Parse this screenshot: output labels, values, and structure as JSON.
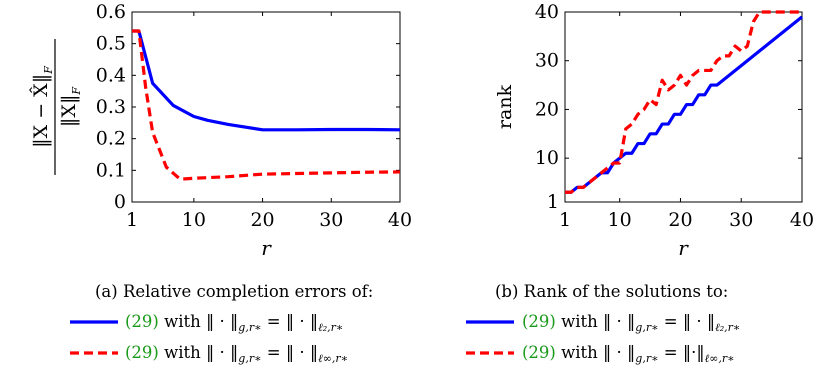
{
  "chart_data": [
    {
      "type": "line",
      "ylabel_num": "‖X − X̂‖",
      "ylabel_num_sub": "F",
      "ylabel_den": "‖X‖",
      "ylabel_den_sub": "F",
      "xlabel": "r",
      "xlim": [
        1,
        40
      ],
      "ylim": [
        0,
        0.6
      ],
      "xticks": [
        1,
        10,
        20,
        30,
        40
      ],
      "yticks": [
        "0",
        "0.1",
        "0.2",
        "0.3",
        "0.4",
        "0.5",
        "0.6"
      ],
      "grid": false,
      "series": [
        {
          "color": "#0000ff",
          "style": "solid",
          "x": [
            1,
            2,
            4,
            7,
            10,
            12,
            15,
            20,
            25,
            30,
            35,
            40
          ],
          "y": [
            0.54,
            0.54,
            0.375,
            0.305,
            0.27,
            0.258,
            0.245,
            0.228,
            0.228,
            0.229,
            0.229,
            0.228
          ]
        },
        {
          "color": "#ff0000",
          "style": "dashed",
          "x": [
            1,
            2,
            3,
            4,
            6,
            8,
            10,
            15,
            20,
            25,
            30,
            35,
            40
          ],
          "y": [
            0.54,
            0.54,
            0.36,
            0.22,
            0.11,
            0.072,
            0.075,
            0.08,
            0.088,
            0.09,
            0.092,
            0.094,
            0.095
          ]
        }
      ],
      "caption": {
        "title": "(a) Relative completion errors of:",
        "lines": [
          {
            "ref": "(29)",
            "text": " with ",
            "lhs": "‖ · ‖",
            "lhs_sub": "g,r∗",
            "eq": " = ",
            "rhs": "‖ · ‖",
            "rhs_sub": "ℓ₂,r∗"
          },
          {
            "ref": "(29)",
            "text": " with ",
            "lhs": "‖ · ‖",
            "lhs_sub": "g,r∗",
            "eq": " = ",
            "rhs": "‖ · ‖",
            "rhs_sub": "ℓ∞,r∗"
          }
        ]
      }
    },
    {
      "type": "line",
      "ylabel": "rank",
      "xlabel": "r",
      "xlim": [
        1,
        40
      ],
      "ylim": [
        1,
        40
      ],
      "xticks": [
        1,
        10,
        20,
        30,
        40
      ],
      "yticks": [
        "1",
        "10",
        "20",
        "30",
        "40"
      ],
      "grid": false,
      "series": [
        {
          "color": "#0000ff",
          "style": "solid",
          "x": [
            1,
            2,
            3,
            4,
            5,
            6,
            7,
            8,
            9,
            10,
            11,
            12,
            13,
            14,
            15,
            16,
            17,
            18,
            19,
            20,
            21,
            22,
            23,
            24,
            25,
            26,
            27,
            28,
            29,
            30,
            31,
            32,
            33,
            34,
            35,
            36,
            37,
            38,
            39,
            40
          ],
          "y": [
            3,
            3,
            4,
            4,
            5,
            6,
            7,
            7,
            9,
            10,
            11,
            11,
            13,
            13,
            15,
            15,
            17,
            17,
            19,
            19,
            21,
            21,
            23,
            23,
            25,
            25,
            26,
            27,
            28,
            29,
            30,
            31,
            32,
            33,
            34,
            35,
            36,
            37,
            38,
            39
          ]
        },
        {
          "color": "#ff0000",
          "style": "dashed",
          "x": [
            1,
            2,
            3,
            4,
            5,
            6,
            7,
            8,
            9,
            10,
            11,
            12,
            13,
            14,
            15,
            16,
            17,
            18,
            19,
            20,
            21,
            22,
            23,
            24,
            25,
            26,
            27,
            28,
            29,
            30,
            31,
            32,
            33,
            34,
            35,
            36,
            37,
            38,
            39,
            40
          ],
          "y": [
            3,
            3,
            4,
            4,
            5,
            6,
            7,
            8,
            9,
            9,
            16,
            17,
            19,
            20,
            22,
            21,
            26,
            24,
            25,
            27,
            25,
            27,
            28,
            28,
            28,
            30,
            31,
            31,
            33,
            32,
            33,
            38,
            40,
            40,
            40,
            40,
            40,
            40,
            40,
            40
          ]
        }
      ],
      "caption": {
        "title": "(b) Rank of the solutions to:",
        "lines": [
          {
            "ref": "(29)",
            "text": " with ",
            "lhs": "‖ · ‖",
            "lhs_sub": "g,r∗",
            "eq": " = ",
            "rhs": "‖ · ‖",
            "rhs_sub": "ℓ₂,r∗"
          },
          {
            "ref": "(29)",
            "text": " with ",
            "lhs": "‖ · ‖",
            "lhs_sub": "g,r∗",
            "eq": " = ",
            "rhs": "‖·‖",
            "rhs_sub": "ℓ∞,r∗"
          }
        ]
      }
    }
  ]
}
